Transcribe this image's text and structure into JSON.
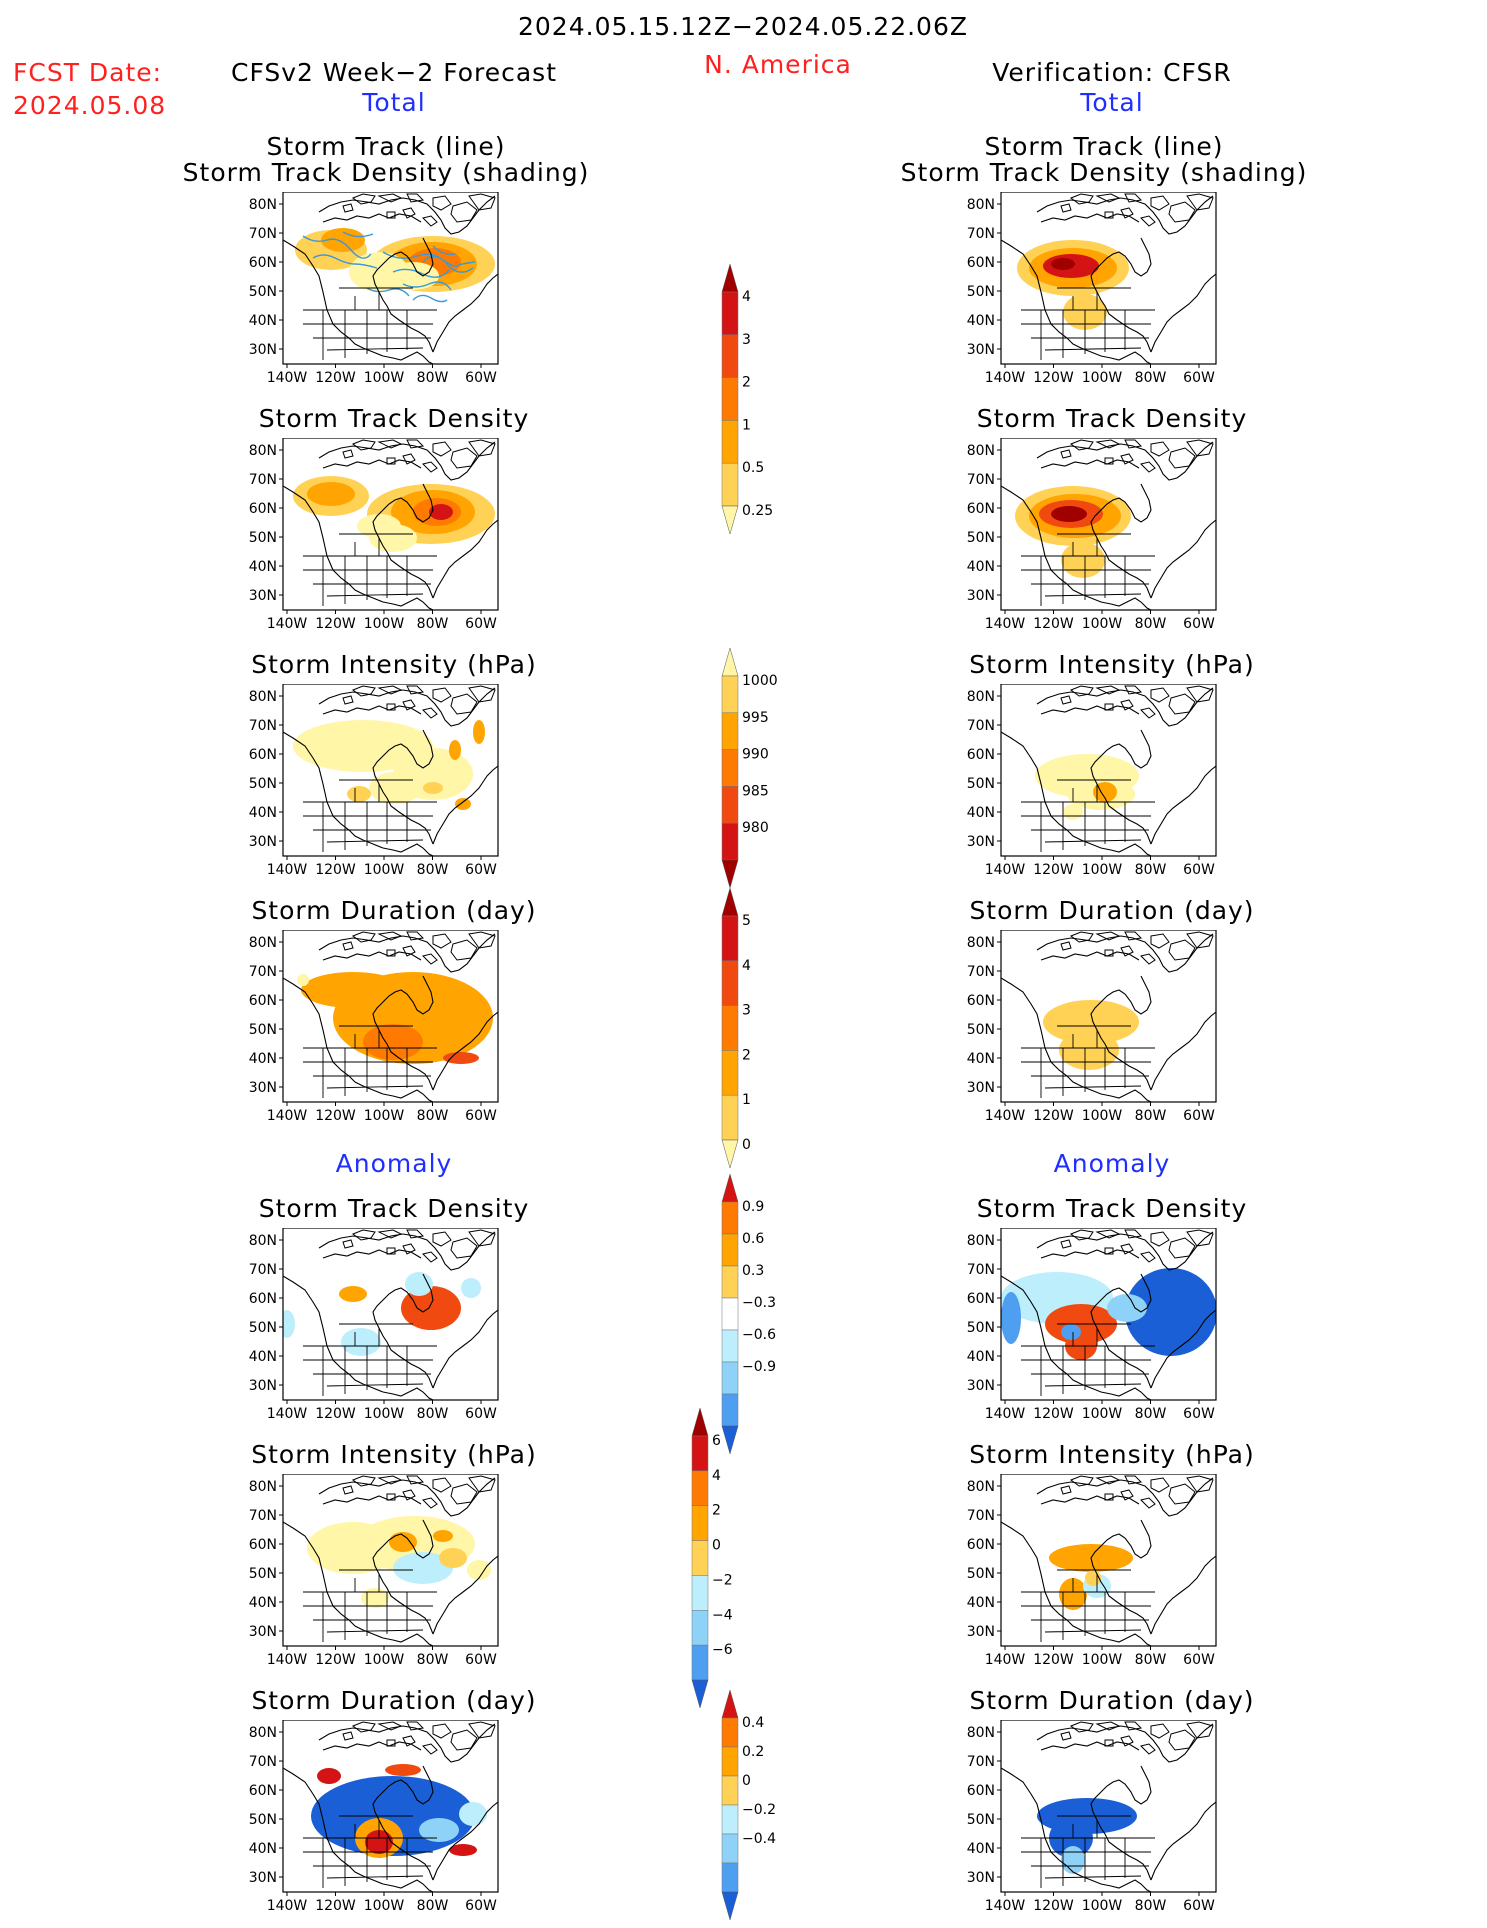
{
  "header": {
    "period": "2024.05.15.12Z−2024.05.22.06Z",
    "region": "N. America",
    "fcst_label": "FCST Date:",
    "fcst_date": "2024.05.08",
    "left_title": "CFSv2 Week−2 Forecast",
    "right_title": "Verification: CFSR",
    "total_label": "Total",
    "anomaly_label": "Anomaly"
  },
  "panel_titles": {
    "st_line1": "Storm Track (line)",
    "st_line2": "Storm Track Density (shading)",
    "density": "Storm Track Density",
    "intensity": "Storm Intensity (hPa)",
    "duration": "Storm Duration (day)"
  },
  "axes": {
    "lat_labels": [
      "80N",
      "70N",
      "60N",
      "50N",
      "40N",
      "30N"
    ],
    "lon_labels": [
      "140W",
      "120W",
      "100W",
      "80W",
      "60W"
    ]
  },
  "colors": {
    "c1": "#fff6a8",
    "c2": "#ffd255",
    "c3": "#ffa400",
    "c4": "#ff7a00",
    "c5": "#f04a10",
    "c6": "#d41414",
    "c7": "#a00000",
    "b1": "#bdeefc",
    "b2": "#8fd2f8",
    "b3": "#4f9ff0",
    "b4": "#1a5fd6",
    "track": "#3b9ad6",
    "coast": "#000000"
  },
  "colorbars": [
    {
      "labels": [
        "4",
        "3",
        "2",
        "1",
        "0.5",
        "0.25"
      ]
    },
    {
      "labels": [
        "1000",
        "995",
        "990",
        "985",
        "980"
      ]
    },
    {
      "labels": [
        "5",
        "4",
        "3",
        "2",
        "1",
        "0"
      ]
    },
    {
      "labels": [
        "0.9",
        "0.6",
        "0.3",
        "−0.3",
        "−0.6",
        "−0.9"
      ]
    },
    {
      "labels": [
        "6",
        "4",
        "2",
        "0",
        "−2",
        "−4",
        "−6"
      ]
    },
    {
      "labels": [
        "0.4",
        "0.2",
        "0",
        "−0.2",
        "−0.4"
      ]
    }
  ]
}
